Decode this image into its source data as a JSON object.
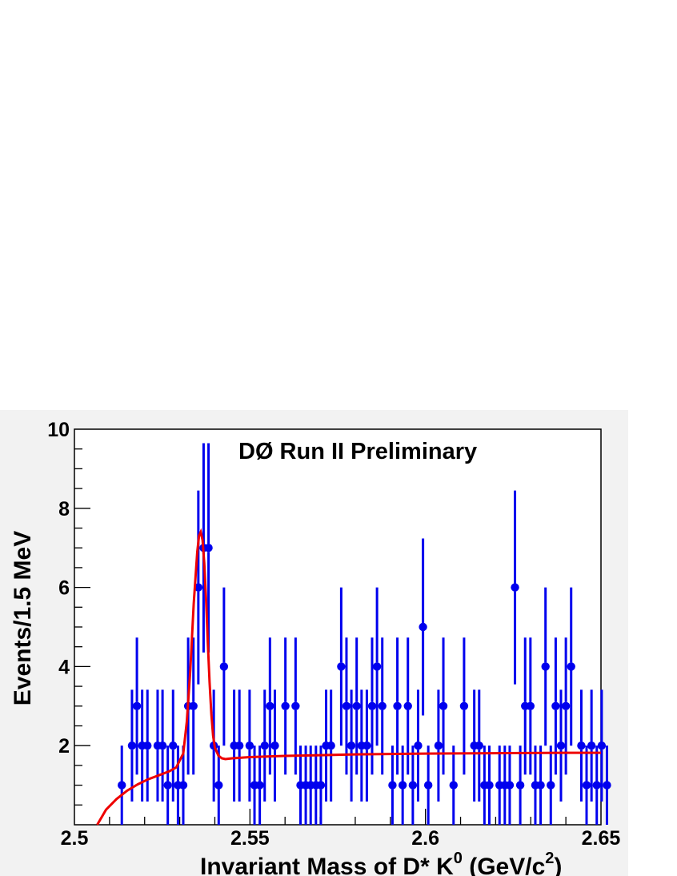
{
  "chart_data": {
    "type": "scatter",
    "title": "",
    "annotation": "DØ Run II Preliminary",
    "xlabel": {
      "text": "Invariant Mass of D* K",
      "sup1": "0",
      "mid": " (GeV/c",
      "sup2": "2",
      "end": ")"
    },
    "ylabel": "Events/1.5 MeV",
    "xlim": [
      2.5,
      2.65
    ],
    "ylim": [
      0,
      10
    ],
    "x_ticks": [
      "2.5",
      "2.55",
      "2.6",
      "2.65"
    ],
    "y_ticks": [
      "2",
      "4",
      "6",
      "8",
      "10"
    ],
    "grid": false,
    "colors": {
      "data": "#0000ee",
      "fit": "#ee0000",
      "frame_bg": "#f2f2f2"
    },
    "series": [
      {
        "kind": "points_with_errors",
        "x": [
          2.5135,
          2.5164,
          2.5178,
          2.5193,
          2.5208,
          2.5237,
          2.5251,
          2.5266,
          2.5281,
          2.5295,
          2.531,
          2.5324,
          2.5339,
          2.5353,
          2.5368,
          2.5382,
          2.5397,
          2.5411,
          2.5426,
          2.5455,
          2.547,
          2.5499,
          2.5513,
          2.5528,
          2.5542,
          2.5557,
          2.5571,
          2.5601,
          2.563,
          2.5644,
          2.5659,
          2.5673,
          2.5688,
          2.5702,
          2.5717,
          2.5731,
          2.576,
          2.5775,
          2.5789,
          2.5804,
          2.5818,
          2.5833,
          2.5848,
          2.5862,
          2.5877,
          2.5906,
          2.592,
          2.5935,
          2.595,
          2.5964,
          2.5979,
          2.5993,
          2.6008,
          2.6037,
          2.6051,
          2.608,
          2.611,
          2.6139,
          2.6153,
          2.6168,
          2.6182,
          2.6211,
          2.6226,
          2.624,
          2.6255,
          2.627,
          2.6284,
          2.6299,
          2.6313,
          2.6328,
          2.6342,
          2.6357,
          2.6371,
          2.6386,
          2.64,
          2.6415,
          2.6444,
          2.6459,
          2.6473,
          2.6488,
          2.6502,
          2.6517
        ],
        "y": [
          1,
          2,
          3,
          2,
          2,
          2,
          2,
          1,
          2,
          1,
          1,
          3,
          3,
          6,
          7,
          7,
          2,
          1,
          4,
          2,
          2,
          2,
          1,
          1,
          2,
          3,
          2,
          3,
          3,
          1,
          1,
          1,
          1,
          1,
          2,
          2,
          4,
          3,
          2,
          3,
          2,
          2,
          3,
          4,
          3,
          1,
          3,
          1,
          3,
          1,
          2,
          5,
          1,
          2,
          3,
          1,
          3,
          2,
          2,
          1,
          1,
          1,
          1,
          1,
          6,
          1,
          3,
          3,
          1,
          1,
          4,
          1,
          3,
          2,
          3,
          4,
          2,
          1,
          2,
          1,
          2,
          1
        ]
      },
      {
        "kind": "fit_curve",
        "x": [
          2.5065,
          2.509,
          2.512,
          2.515,
          2.518,
          2.521,
          2.524,
          2.527,
          2.529,
          2.531,
          2.532,
          2.533,
          2.534,
          2.535,
          2.5355,
          2.536,
          2.5365,
          2.537,
          2.5375,
          2.538,
          2.5385,
          2.539,
          2.5395,
          2.54,
          2.541,
          2.542,
          2.543,
          2.545,
          2.55,
          2.56,
          2.57,
          2.58,
          2.6,
          2.62,
          2.64,
          2.65
        ],
        "y": [
          0,
          0.38,
          0.65,
          0.86,
          1.02,
          1.15,
          1.25,
          1.35,
          1.45,
          1.8,
          2.6,
          3.9,
          5.6,
          6.9,
          7.3,
          7.4,
          7.2,
          6.6,
          5.7,
          4.6,
          3.6,
          2.8,
          2.25,
          1.95,
          1.75,
          1.68,
          1.66,
          1.68,
          1.71,
          1.74,
          1.76,
          1.78,
          1.8,
          1.81,
          1.82,
          1.82
        ]
      }
    ]
  }
}
